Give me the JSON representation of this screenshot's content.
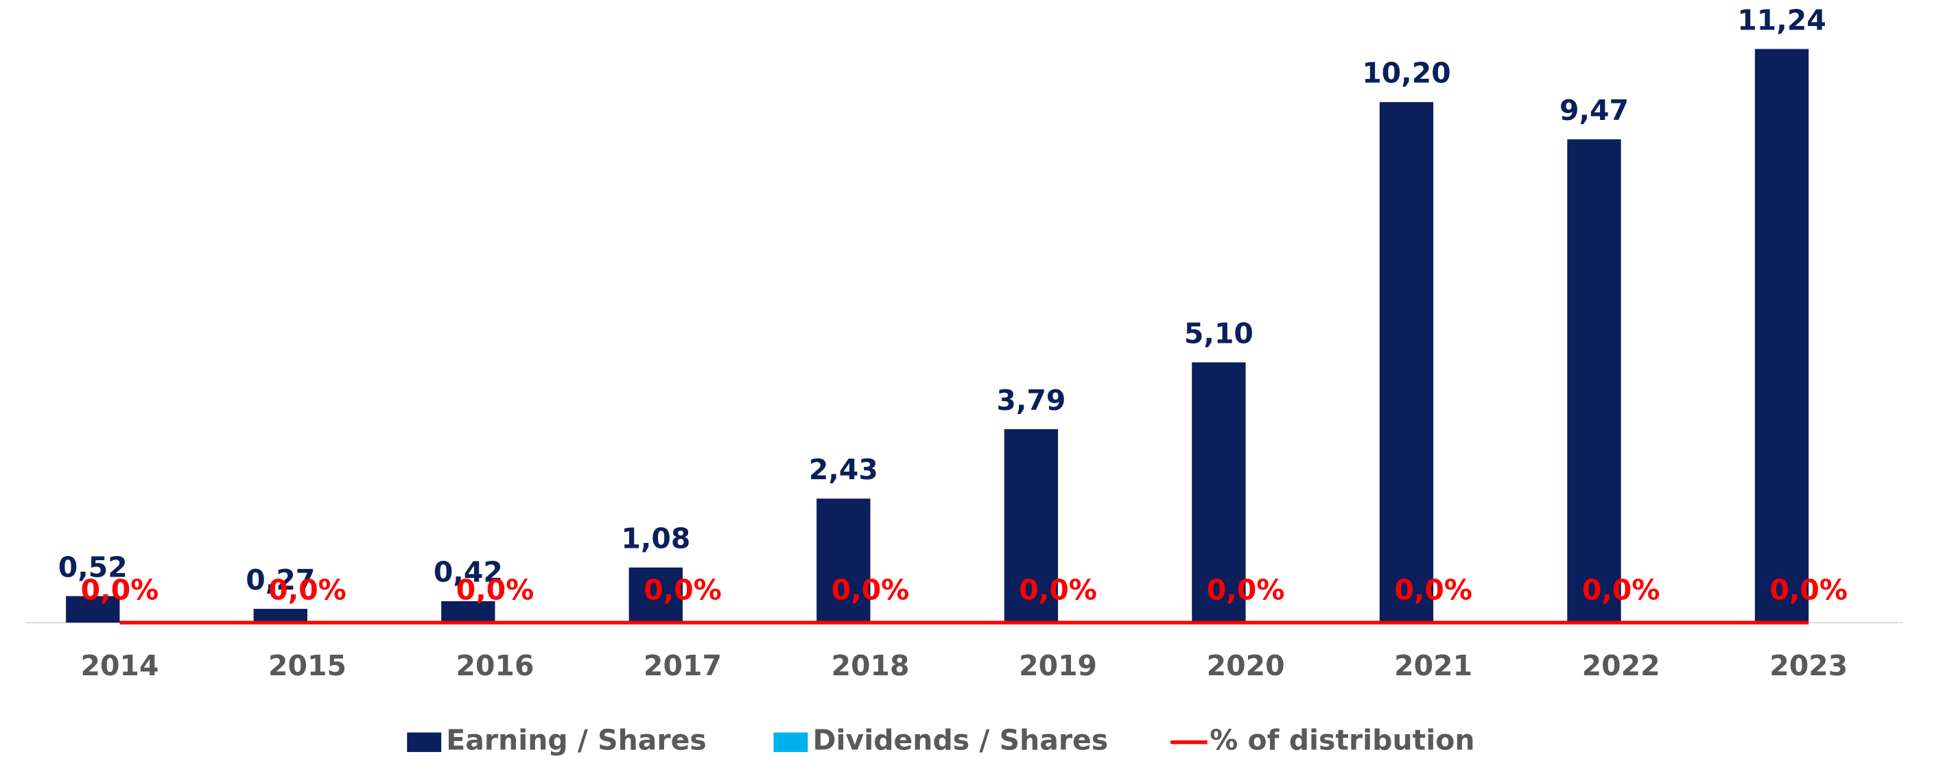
{
  "chart_data": {
    "type": "bar",
    "categories": [
      "2014",
      "2015",
      "2016",
      "2017",
      "2018",
      "2019",
      "2020",
      "2021",
      "2022",
      "2023"
    ],
    "series": [
      {
        "name": "Earning / Shares",
        "color": "#0a1f5c",
        "values": [
          0.52,
          0.27,
          0.42,
          1.08,
          2.43,
          3.79,
          5.1,
          10.2,
          9.47,
          11.24
        ],
        "value_labels": [
          "0,52",
          "0,27",
          "0,42",
          "1,08",
          "2,43",
          "3,79",
          "5,10",
          "10,20",
          "9,47",
          "11,24"
        ]
      },
      {
        "name": "Dividends / Shares",
        "color": "#00b0f0",
        "values": [
          0,
          0,
          0,
          0,
          0,
          0,
          0,
          0,
          0,
          0
        ]
      },
      {
        "name": "% of distribution",
        "color": "#ff0000",
        "type": "line",
        "axis": "y2",
        "values": [
          0,
          0,
          0,
          0,
          0,
          0,
          0,
          0,
          0,
          0
        ],
        "value_labels": [
          "0,0%",
          "0,0%",
          "0,0%",
          "0,0%",
          "0,0%",
          "0,0%",
          "0,0%",
          "0,0%",
          "0,0%",
          "0,0%"
        ]
      }
    ],
    "ylim": [
      0,
      12.2
    ],
    "y2lim": [
      0,
      100
    ],
    "legend": "bottom"
  }
}
